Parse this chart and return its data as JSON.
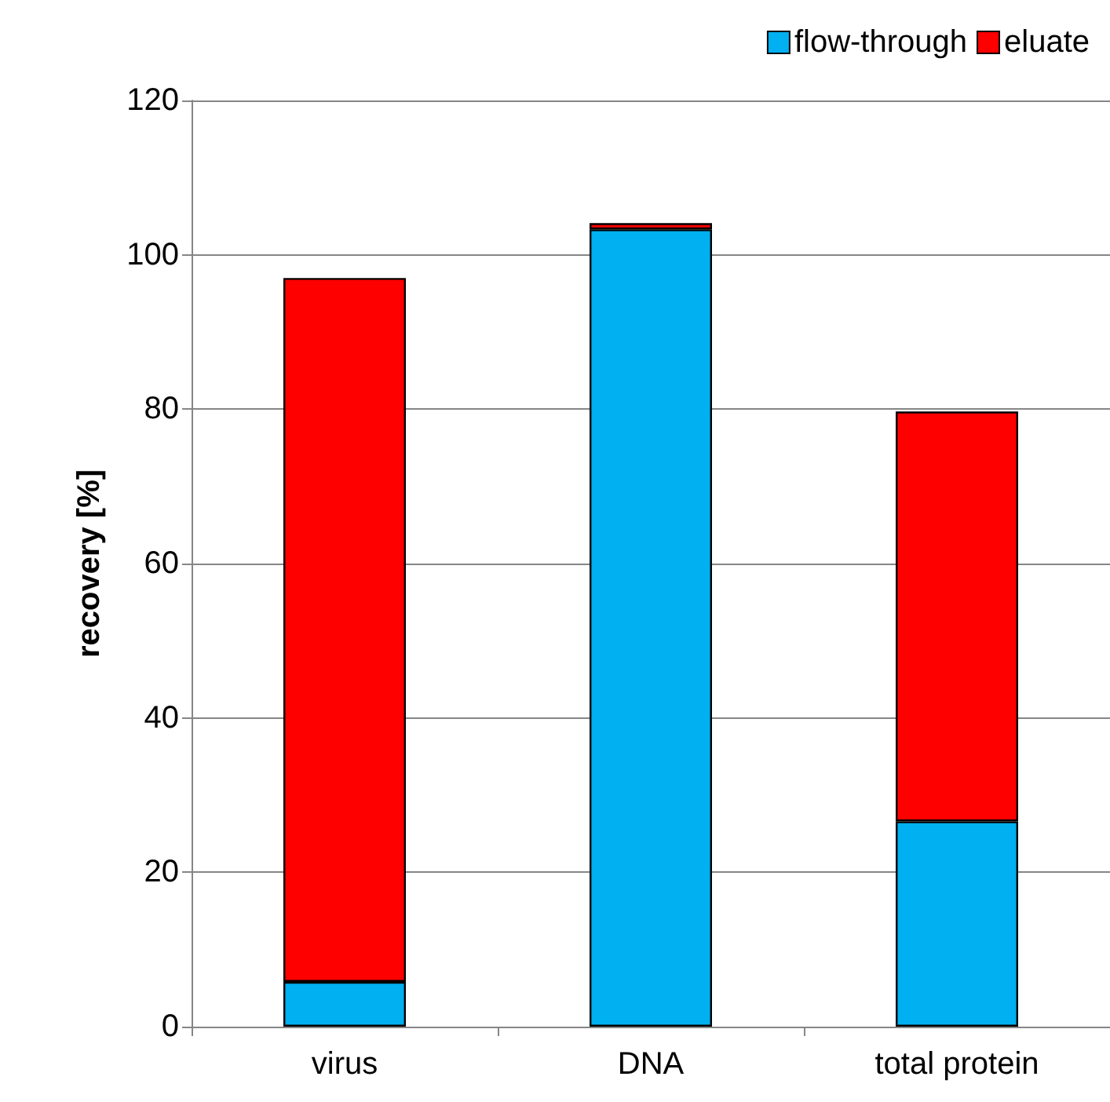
{
  "chart_data": {
    "type": "bar",
    "ylabel": "recovery [%]",
    "categories": [
      "virus",
      "DNA",
      "total protein"
    ],
    "stacked": true,
    "series": [
      {
        "name": "flow-through",
        "color": "#00b0f0",
        "values": [
          5.8,
          103.3,
          26.6
        ]
      },
      {
        "name": "eluate",
        "color": "#ff0000",
        "values": [
          91.2,
          0.8,
          53.1
        ]
      }
    ],
    "ylim": [
      0,
      120
    ],
    "yticks": [
      0,
      20,
      40,
      60,
      80,
      100,
      120
    ],
    "grid": "y",
    "legend": "top right"
  }
}
